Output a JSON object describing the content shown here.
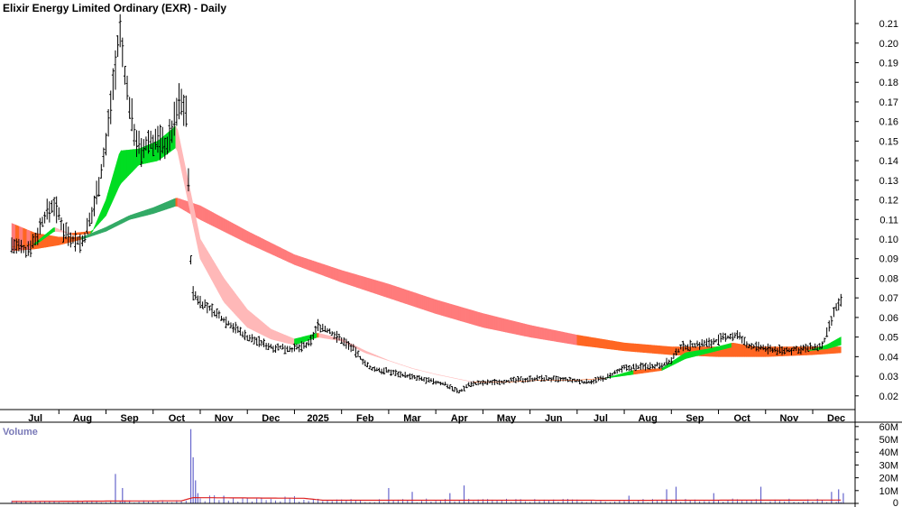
{
  "chart_data": {
    "type": "candlestick",
    "title": "Elixir Energy Limited Ordinary (EXR) - Daily",
    "price_axis": {
      "range": [
        0.013,
        0.222
      ],
      "ticks": [
        0.21,
        0.2,
        0.19,
        0.18,
        0.17,
        0.16,
        0.15,
        0.14,
        0.13,
        0.12,
        0.11,
        0.1,
        0.09,
        0.08,
        0.07,
        0.06,
        0.05,
        0.04,
        0.03,
        0.02
      ]
    },
    "x_axis": {
      "labels": [
        {
          "label": "Jul",
          "pos": 0.5
        },
        {
          "label": "Aug",
          "pos": 1.5
        },
        {
          "label": "Sep",
          "pos": 2.5
        },
        {
          "label": "Oct",
          "pos": 3.5
        },
        {
          "label": "Nov",
          "pos": 4.5
        },
        {
          "label": "Dec",
          "pos": 5.5
        },
        {
          "label": "2025",
          "pos": 6.5
        },
        {
          "label": "Feb",
          "pos": 7.5
        },
        {
          "label": "Mar",
          "pos": 8.5
        },
        {
          "label": "Apr",
          "pos": 9.5
        },
        {
          "label": "May",
          "pos": 10.5
        },
        {
          "label": "Jun",
          "pos": 11.5
        },
        {
          "label": "Jul",
          "pos": 12.5
        },
        {
          "label": "Aug",
          "pos": 13.5
        },
        {
          "label": "Sep",
          "pos": 14.5
        },
        {
          "label": "Oct",
          "pos": 15.5
        },
        {
          "label": "Nov",
          "pos": 16.5
        },
        {
          "label": "Dec",
          "pos": 17.5
        }
      ],
      "range": [
        -0.25,
        17.9
      ]
    },
    "price_path": [
      [
        0.0,
        0.097
      ],
      [
        0.3,
        0.094
      ],
      [
        0.5,
        0.1
      ],
      [
        0.7,
        0.112
      ],
      [
        0.9,
        0.118
      ],
      [
        1.1,
        0.105
      ],
      [
        1.3,
        0.1
      ],
      [
        1.5,
        0.098
      ],
      [
        1.7,
        0.112
      ],
      [
        1.9,
        0.135
      ],
      [
        2.0,
        0.148
      ],
      [
        2.15,
        0.18
      ],
      [
        2.3,
        0.205
      ],
      [
        2.45,
        0.175
      ],
      [
        2.6,
        0.155
      ],
      [
        2.75,
        0.143
      ],
      [
        2.9,
        0.15
      ],
      [
        3.1,
        0.15
      ],
      [
        3.3,
        0.148
      ],
      [
        3.45,
        0.16
      ],
      [
        3.55,
        0.17
      ],
      [
        3.7,
        0.167
      ],
      [
        3.8,
        0.09
      ],
      [
        3.85,
        0.072
      ],
      [
        4.0,
        0.068
      ],
      [
        4.5,
        0.059
      ],
      [
        5.0,
        0.05
      ],
      [
        5.5,
        0.045
      ],
      [
        6.0,
        0.044
      ],
      [
        6.3,
        0.046
      ],
      [
        6.5,
        0.056
      ],
      [
        6.8,
        0.052
      ],
      [
        7.2,
        0.045
      ],
      [
        7.6,
        0.034
      ],
      [
        8.1,
        0.032
      ],
      [
        8.6,
        0.029
      ],
      [
        9.2,
        0.026
      ],
      [
        9.5,
        0.022
      ],
      [
        9.7,
        0.026
      ],
      [
        10.2,
        0.027
      ],
      [
        10.7,
        0.028
      ],
      [
        11.2,
        0.029
      ],
      [
        11.8,
        0.028
      ],
      [
        12.2,
        0.027
      ],
      [
        12.6,
        0.029
      ],
      [
        13.0,
        0.034
      ],
      [
        13.4,
        0.035
      ],
      [
        13.8,
        0.036
      ],
      [
        14.0,
        0.038
      ],
      [
        14.2,
        0.045
      ],
      [
        14.5,
        0.046
      ],
      [
        14.8,
        0.047
      ],
      [
        15.2,
        0.05
      ],
      [
        15.4,
        0.051
      ],
      [
        15.6,
        0.046
      ],
      [
        16.0,
        0.044
      ],
      [
        16.4,
        0.043
      ],
      [
        16.8,
        0.044
      ],
      [
        17.2,
        0.045
      ],
      [
        17.35,
        0.055
      ],
      [
        17.5,
        0.065
      ],
      [
        17.6,
        0.068
      ]
    ],
    "fast_ribbon": [
      [
        0.0,
        0.096,
        0.096
      ],
      [
        0.5,
        0.097,
        0.098
      ],
      [
        0.9,
        0.104,
        0.106
      ],
      [
        1.3,
        0.103,
        0.102
      ],
      [
        1.7,
        0.104,
        0.103
      ],
      [
        2.0,
        0.112,
        0.12
      ],
      [
        2.3,
        0.128,
        0.145
      ],
      [
        2.7,
        0.138,
        0.146
      ],
      [
        3.1,
        0.14,
        0.15
      ],
      [
        3.5,
        0.147,
        0.158
      ],
      [
        4.0,
        0.09,
        0.1
      ],
      [
        4.5,
        0.068,
        0.08
      ],
      [
        5.0,
        0.055,
        0.064
      ],
      [
        5.5,
        0.049,
        0.054
      ],
      [
        6.0,
        0.046,
        0.049
      ],
      [
        6.5,
        0.05,
        0.052
      ],
      [
        7.0,
        0.048,
        0.049
      ],
      [
        7.5,
        0.042,
        0.043
      ],
      [
        8.0,
        0.038,
        0.038
      ],
      [
        8.5,
        0.034,
        0.034
      ],
      [
        9.0,
        0.031,
        0.031
      ],
      [
        9.4,
        0.029,
        0.029
      ],
      [
        9.8,
        0.027,
        0.027
      ],
      [
        10.5,
        0.027,
        0.027
      ],
      [
        11.2,
        0.028,
        0.028
      ],
      [
        12.0,
        0.028,
        0.028
      ],
      [
        12.6,
        0.029,
        0.029
      ],
      [
        13.2,
        0.031,
        0.033
      ],
      [
        13.8,
        0.033,
        0.034
      ],
      [
        14.3,
        0.039,
        0.042
      ],
      [
        14.8,
        0.042,
        0.044
      ],
      [
        15.3,
        0.045,
        0.047
      ],
      [
        15.8,
        0.044,
        0.045
      ],
      [
        16.3,
        0.043,
        0.043
      ],
      [
        16.9,
        0.043,
        0.043
      ],
      [
        17.3,
        0.044,
        0.046
      ],
      [
        17.6,
        0.046,
        0.05
      ]
    ],
    "slow_ribbon": [
      [
        0.0,
        0.094,
        0.108
      ],
      [
        0.5,
        0.095,
        0.103
      ],
      [
        1.0,
        0.097,
        0.101
      ],
      [
        1.5,
        0.1,
        0.101
      ],
      [
        2.0,
        0.104,
        0.106
      ],
      [
        2.5,
        0.11,
        0.112
      ],
      [
        3.0,
        0.113,
        0.116
      ],
      [
        3.5,
        0.117,
        0.121
      ],
      [
        4.0,
        0.11,
        0.117
      ],
      [
        5.0,
        0.098,
        0.104
      ],
      [
        6.0,
        0.087,
        0.092
      ],
      [
        7.0,
        0.078,
        0.084
      ],
      [
        8.0,
        0.07,
        0.077
      ],
      [
        9.0,
        0.062,
        0.069
      ],
      [
        10.0,
        0.055,
        0.062
      ],
      [
        11.0,
        0.05,
        0.056
      ],
      [
        12.0,
        0.046,
        0.051
      ],
      [
        13.0,
        0.043,
        0.047
      ],
      [
        14.0,
        0.041,
        0.045
      ],
      [
        15.0,
        0.04,
        0.045
      ],
      [
        16.0,
        0.04,
        0.045
      ],
      [
        17.0,
        0.041,
        0.045
      ],
      [
        17.6,
        0.042,
        0.045
      ]
    ],
    "volume_axis": {
      "label": "Volume",
      "range": [
        0,
        62
      ],
      "ticks": [
        "60M",
        "50M",
        "40M",
        "30M",
        "20M",
        "10M",
        "0"
      ],
      "tick_values": [
        60,
        50,
        40,
        30,
        20,
        10,
        0
      ]
    },
    "volume_avg": [
      [
        0.0,
        1.5
      ],
      [
        2.0,
        1.8
      ],
      [
        3.6,
        2.0
      ],
      [
        3.85,
        4.5
      ],
      [
        6.2,
        4.0
      ],
      [
        6.6,
        2.5
      ],
      [
        9.0,
        2.5
      ],
      [
        11.0,
        2.5
      ],
      [
        13.0,
        2.4
      ],
      [
        15.0,
        2.5
      ],
      [
        17.6,
        2.6
      ]
    ],
    "volume_spikes": [
      [
        2.2,
        23
      ],
      [
        2.35,
        12
      ],
      [
        3.8,
        58
      ],
      [
        3.85,
        36
      ],
      [
        3.9,
        18
      ],
      [
        3.95,
        8
      ],
      [
        4.5,
        6
      ],
      [
        8.0,
        12
      ],
      [
        8.5,
        9
      ],
      [
        9.3,
        8
      ],
      [
        9.6,
        14
      ],
      [
        13.1,
        6
      ],
      [
        13.9,
        11
      ],
      [
        14.1,
        13
      ],
      [
        14.9,
        8
      ],
      [
        15.9,
        13
      ],
      [
        17.4,
        9
      ],
      [
        17.55,
        11
      ],
      [
        17.65,
        8
      ]
    ],
    "colors": {
      "fast_ribbon_up": "#00dd22",
      "fast_ribbon_down": "#ffb8b8",
      "fast_ribbon_flat": "#ff6622",
      "slow_ribbon_up": "#33aa66",
      "slow_ribbon_down": "#ff7b7b",
      "slow_ribbon_flat": "#ff6622",
      "volume_bar": "#6666cc",
      "volume_avg": "#dd2222",
      "axis": "#000000"
    },
    "grid": false
  }
}
